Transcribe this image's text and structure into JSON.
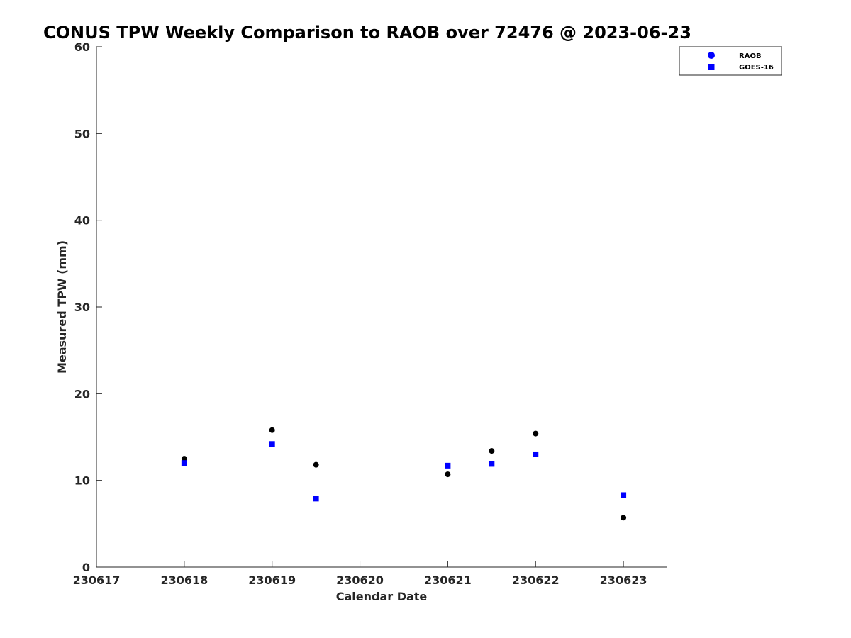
{
  "chart_data": {
    "type": "scatter",
    "title": "CONUS TPW Weekly Comparison to RAOB over 72476 @ 2023-06-23",
    "xlabel": "Calendar Date",
    "ylabel": "Measured TPW (mm)",
    "xlim": [
      230617,
      230623.5
    ],
    "ylim": [
      0,
      60
    ],
    "x_ticks": [
      230617,
      230618,
      230619,
      230620,
      230621,
      230622,
      230623
    ],
    "x_tick_labels": [
      "230617",
      "230618",
      "230619",
      "230620",
      "230621",
      "230622",
      "230623"
    ],
    "y_ticks": [
      0,
      10,
      20,
      30,
      40,
      50,
      60
    ],
    "y_tick_labels": [
      "0",
      "10",
      "20",
      "30",
      "40",
      "50",
      "60"
    ],
    "grid": false,
    "legend_position": "top-right",
    "series": [
      {
        "name": "RAOB",
        "marker": "circle",
        "color": "#000000",
        "legend_color": "#0000ff",
        "x": [
          230618,
          230619,
          230619.5,
          230621,
          230621.5,
          230622,
          230623
        ],
        "values": [
          12.5,
          15.8,
          11.8,
          10.7,
          13.4,
          15.4,
          5.7
        ]
      },
      {
        "name": "GOES-16",
        "marker": "square",
        "color": "#0000ff",
        "legend_color": "#0000ff",
        "x": [
          230618,
          230619,
          230619.5,
          230621,
          230621.5,
          230622,
          230623
        ],
        "values": [
          12.0,
          14.2,
          7.9,
          11.7,
          11.9,
          13.0,
          8.3
        ]
      }
    ]
  }
}
